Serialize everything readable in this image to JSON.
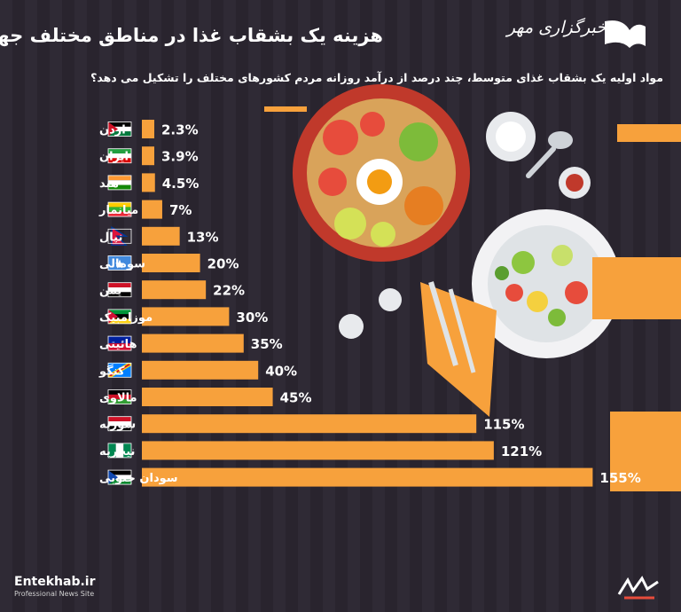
{
  "header": {
    "title": "هزینه یک بشقاب غذا در مناطق مختلف جهان",
    "subtitle": "مواد اولیه یک بشقاب غذای متوسط، چند درصد از درآمد روزانه مردم کشورهای مختلف را تشکیل می دهد؟",
    "logo_text": "خبرگزاری مهر"
  },
  "footer": {
    "brand": "Entekhab.ir",
    "tagline": "Professional News Site"
  },
  "colors": {
    "background": "#2a2530",
    "bar": "#f7a13c",
    "text": "#ffffff"
  },
  "chart_data": {
    "type": "bar",
    "orientation": "horizontal",
    "categories": [
      "اردن",
      "ایران",
      "هند",
      "میانمار",
      "نپال",
      "سومالی",
      "یمن",
      "موزامبیک",
      "هائیتی",
      "کنگو",
      "مالاوی",
      "سوریه",
      "نیجریه",
      "سودان جنوبی"
    ],
    "values": [
      2.3,
      3.9,
      4.5,
      7,
      13,
      20,
      22,
      30,
      35,
      40,
      45,
      115,
      121,
      155
    ],
    "labels": [
      "2.3%",
      "3.9%",
      "4.5%",
      "7%",
      "13%",
      "20%",
      "22%",
      "30%",
      "35%",
      "40%",
      "45%",
      "115%",
      "121%",
      "155%"
    ],
    "unit": "%",
    "flag_icons": [
      "jordan-flag-icon",
      "iran-flag-icon",
      "india-flag-icon",
      "myanmar-flag-icon",
      "nepal-flag-icon",
      "somalia-flag-icon",
      "yemen-flag-icon",
      "mozambique-flag-icon",
      "haiti-flag-icon",
      "congo-flag-icon",
      "malawi-flag-icon",
      "syria-flag-icon",
      "nigeria-flag-icon",
      "south-sudan-flag-icon"
    ],
    "title": "هزینه یک بشقاب غذا در مناطق مختلف جهان",
    "xlabel": "",
    "ylabel": "",
    "grid": false,
    "legend": "none"
  }
}
